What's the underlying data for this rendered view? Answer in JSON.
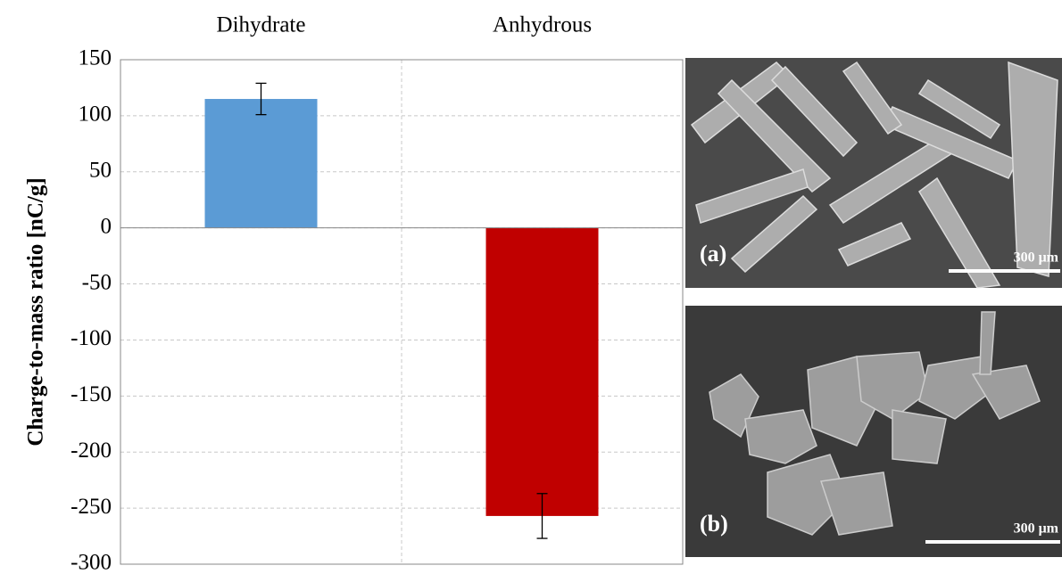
{
  "chart_data": {
    "type": "bar",
    "y_label": "Charge-to-mass ratio [nC/g]",
    "categories": [
      "Dihydrate",
      "Anhydrous"
    ],
    "values": [
      115,
      -257
    ],
    "errors": [
      14,
      20
    ],
    "colors": [
      "#5b9bd5",
      "#c00000"
    ],
    "ylim": [
      -300,
      150
    ],
    "yticks": [
      -300,
      -250,
      -200,
      -150,
      -100,
      -50,
      0,
      50,
      100,
      150
    ],
    "grid": true
  },
  "panels": [
    {
      "label": "(a)",
      "scale": "300 μm"
    },
    {
      "label": "(b)",
      "scale": "300 μm"
    }
  ]
}
